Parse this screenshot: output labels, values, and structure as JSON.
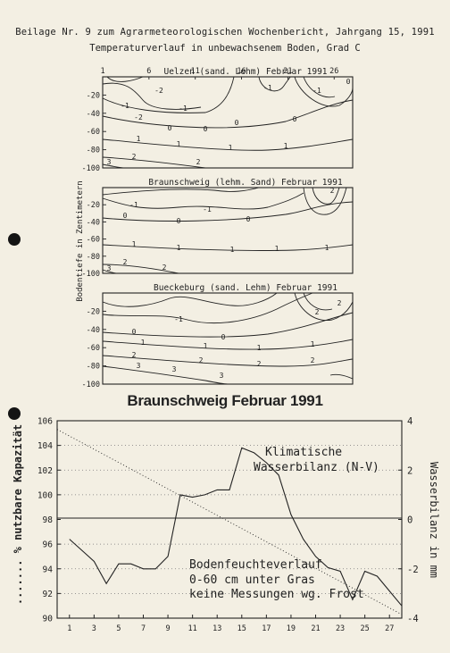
{
  "header": {
    "line1": "Beilage Nr. 9 zum Agrarmeteorologischen Wochenbericht, Jahrgang 15, 1991",
    "line2": "Temperaturverlauf in unbewachsenem Boden, Grad C"
  },
  "colors": {
    "ink": "#222222",
    "paper": "#f3efe3",
    "hole": "#141414"
  },
  "chart_data": [
    {
      "type": "contour",
      "title": "Uelzen (sand. Lehm) Februar 1991",
      "x_ticks": [
        "1",
        "6",
        "11",
        "16",
        "21",
        "26"
      ],
      "y_ticks": [
        "-20",
        "-40",
        "-60",
        "-80",
        "-100"
      ],
      "ylim": [
        -100,
        0
      ],
      "contour_labels": [
        "-2",
        "-2",
        "-1",
        "-1",
        "-1",
        "0",
        "0",
        "0",
        "0",
        "1",
        "1",
        "1",
        "1",
        "2",
        "2",
        "3",
        "-1",
        "0"
      ]
    },
    {
      "type": "contour",
      "title": "Braunschweig (lehm. Sand) Februar 1991",
      "ylabel": "Bodentiefe in Zentimetern",
      "y_ticks": [
        "-20",
        "-40",
        "-60",
        "-80",
        "-100"
      ],
      "ylim": [
        -100,
        0
      ],
      "contour_labels": [
        "-1",
        "-1",
        "0",
        "0",
        "0",
        "1",
        "1",
        "1",
        "1",
        "1",
        "2",
        "2",
        "3",
        "2"
      ]
    },
    {
      "type": "contour",
      "title": "Bueckeburg (sand. Lehm) Februar 1991",
      "y_ticks": [
        "-20",
        "-40",
        "-60",
        "-80",
        "-100"
      ],
      "ylim": [
        -100,
        0
      ],
      "contour_labels": [
        "-1",
        "0",
        "0",
        "1",
        "1",
        "1",
        "1",
        "2",
        "2",
        "2",
        "2",
        "3",
        "3",
        "3",
        "2",
        "2"
      ]
    },
    {
      "type": "line",
      "title": "Braunschweig Februar 1991",
      "ylabel": "....... % nutzbare Kapazität",
      "y2label": "Wasserbilanz in mm",
      "x_ticks": [
        "1",
        "3",
        "5",
        "7",
        "9",
        "11",
        "13",
        "15",
        "17",
        "19",
        "21",
        "23",
        "25",
        "27"
      ],
      "y_ticks": [
        "90",
        "92",
        "94",
        "96",
        "98",
        "100",
        "102",
        "104",
        "106"
      ],
      "y2_ticks": [
        "-4",
        "-2",
        "0",
        "2",
        "4"
      ],
      "xlim": [
        0,
        28
      ],
      "ylim": [
        90,
        106
      ],
      "y2lim": [
        -4,
        4
      ],
      "grid": "horizontal dotted",
      "series": [
        {
          "name": "Klimatische Wasserbilanz (N-V)",
          "axis": "right",
          "style": "solid",
          "x": [
            1,
            2,
            3,
            4,
            5,
            6,
            7,
            8,
            9,
            10,
            11,
            12,
            13,
            14,
            15,
            16,
            17,
            18,
            19,
            20,
            21,
            22,
            23,
            24,
            25,
            26,
            27,
            28
          ],
          "values": [
            -0.8,
            -1.25,
            -1.7,
            -2.6,
            -1.8,
            -1.8,
            -2.0,
            -2.0,
            -1.5,
            1.0,
            0.9,
            1.0,
            1.2,
            1.2,
            2.9,
            2.7,
            2.3,
            1.8,
            0.2,
            -0.8,
            -1.5,
            -1.95,
            -2.1,
            -3.25,
            -2.1,
            -2.3,
            -2.9,
            -3.5
          ]
        },
        {
          "name": "Bodenfeuchteverlauf 0-60 cm unter Gras keine Messungen wg. Frost",
          "axis": "left",
          "style": "dotted",
          "x": [
            0,
            28
          ],
          "values": [
            105.3,
            90.3
          ]
        }
      ],
      "annotations": {
        "balance_label_1": "Klimatische",
        "balance_label_2": "Wasserbilanz (N-V)",
        "moisture_label_1": "Bodenfeuchteverlauf",
        "moisture_label_2": "0-60 cm unter Gras",
        "moisture_label_3": "keine Messungen wg. Frost"
      }
    }
  ]
}
